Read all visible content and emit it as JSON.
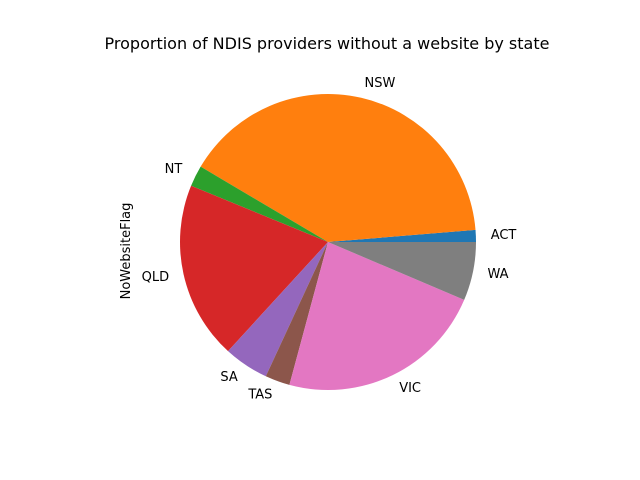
{
  "chart_data": {
    "type": "pie",
    "title": "Proportion of NDIS providers without a website by state",
    "ylabel": "NoWebsiteFlag",
    "categories": [
      "ACT",
      "NSW",
      "NT",
      "QLD",
      "SA",
      "TAS",
      "VIC",
      "WA"
    ],
    "values": [
      1.3,
      40.2,
      2.3,
      19.4,
      4.9,
      2.7,
      22.8,
      6.4
    ],
    "colors": [
      "#1f77b4",
      "#ff7f0e",
      "#2ca02c",
      "#d62728",
      "#9467bd",
      "#8c564b",
      "#e377c2",
      "#7f7f7f"
    ],
    "start_angle_deg": 0,
    "direction": "counterclockwise",
    "legend": "none"
  }
}
